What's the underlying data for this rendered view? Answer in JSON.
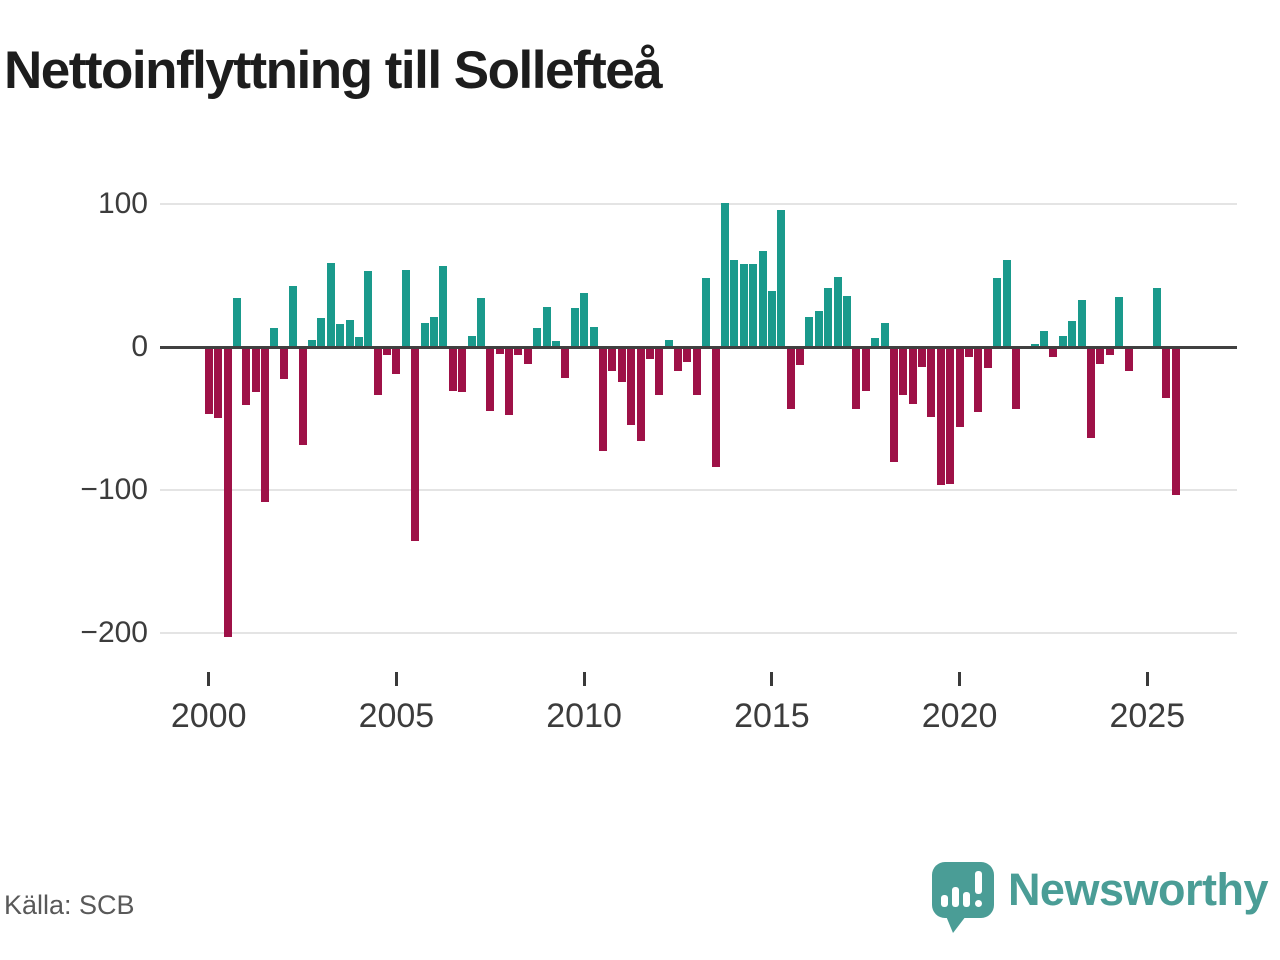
{
  "title": "Nettoinflyttning till Sollefteå",
  "source": "Källa: SCB",
  "logo": {
    "text": "Newsworthy"
  },
  "chart_data": {
    "type": "bar",
    "title": "Nettoinflyttning till Sollefteå",
    "frequency": "quarterly",
    "x_range": [
      "2000 Q1",
      "2025 Q4"
    ],
    "categories": [
      "2000 Q1",
      "2000 Q2",
      "2000 Q3",
      "2000 Q4",
      "2001 Q1",
      "2001 Q2",
      "2001 Q3",
      "2001 Q4",
      "2002 Q1",
      "2002 Q2",
      "2002 Q3",
      "2002 Q4",
      "2003 Q1",
      "2003 Q2",
      "2003 Q3",
      "2003 Q4",
      "2004 Q1",
      "2004 Q2",
      "2004 Q3",
      "2004 Q4",
      "2005 Q1",
      "2005 Q2",
      "2005 Q3",
      "2005 Q4",
      "2006 Q1",
      "2006 Q2",
      "2006 Q3",
      "2006 Q4",
      "2007 Q1",
      "2007 Q2",
      "2007 Q3",
      "2007 Q4",
      "2008 Q1",
      "2008 Q2",
      "2008 Q3",
      "2008 Q4",
      "2009 Q1",
      "2009 Q2",
      "2009 Q3",
      "2009 Q4",
      "2010 Q1",
      "2010 Q2",
      "2010 Q3",
      "2010 Q4",
      "2011 Q1",
      "2011 Q2",
      "2011 Q3",
      "2011 Q4",
      "2012 Q1",
      "2012 Q2",
      "2012 Q3",
      "2012 Q4",
      "2013 Q1",
      "2013 Q2",
      "2013 Q3",
      "2013 Q4",
      "2014 Q1",
      "2014 Q2",
      "2014 Q3",
      "2014 Q4",
      "2015 Q1",
      "2015 Q2",
      "2015 Q3",
      "2015 Q4",
      "2016 Q1",
      "2016 Q2",
      "2016 Q3",
      "2016 Q4",
      "2017 Q1",
      "2017 Q2",
      "2017 Q3",
      "2017 Q4",
      "2018 Q1",
      "2018 Q2",
      "2018 Q3",
      "2018 Q4",
      "2019 Q1",
      "2019 Q2",
      "2019 Q3",
      "2019 Q4",
      "2020 Q1",
      "2020 Q2",
      "2020 Q3",
      "2020 Q4",
      "2021 Q1",
      "2021 Q2",
      "2021 Q3",
      "2021 Q4",
      "2022 Q1",
      "2022 Q2",
      "2022 Q3",
      "2022 Q4",
      "2023 Q1",
      "2023 Q2",
      "2023 Q3",
      "2023 Q4",
      "2024 Q1",
      "2024 Q2",
      "2024 Q3",
      "2024 Q4",
      "2025 Q1",
      "2025 Q2",
      "2025 Q3",
      "2025 Q4"
    ],
    "values": [
      -46,
      -49,
      -202,
      34,
      -40,
      -31,
      -108,
      13,
      -22,
      43,
      -68,
      5,
      20,
      59,
      16,
      19,
      7,
      53,
      -33,
      -5,
      -18,
      54,
      -135,
      17,
      21,
      57,
      -30,
      -31,
      8,
      34,
      -44,
      -4,
      -47,
      -5,
      -11,
      13,
      28,
      4,
      -21,
      27,
      38,
      14,
      -72,
      -16,
      -24,
      -54,
      -65,
      -8,
      -33,
      5,
      -16,
      -10,
      -33,
      48,
      -83,
      101,
      61,
      58,
      58,
      67,
      39,
      96,
      -43,
      -12,
      21,
      25,
      41,
      49,
      36,
      -43,
      -30,
      6,
      17,
      -80,
      -33,
      -39,
      -13,
      -48,
      -96,
      -95,
      -55,
      -6,
      -45,
      -14,
      48,
      61,
      -43,
      0,
      2,
      11,
      -6,
      8,
      18,
      33,
      -63,
      -11,
      -5,
      35,
      -16,
      0,
      0,
      41,
      -35,
      -103
    ],
    "positive_color": "#1a9a8c",
    "negative_color": "#9e1147",
    "ylim": [
      -220,
      115
    ],
    "yticks": {
      "values": [
        100,
        0,
        -100,
        -200
      ],
      "labels": [
        "100",
        "0",
        "−100",
        "−200"
      ]
    },
    "xticks": {
      "years": [
        2000,
        2005,
        2010,
        2015,
        2020,
        2025
      ],
      "labels": [
        "2000",
        "2005",
        "2010",
        "2015",
        "2020",
        "2025"
      ]
    },
    "grid": true,
    "legend": "none",
    "xlabel": "",
    "ylabel": ""
  }
}
